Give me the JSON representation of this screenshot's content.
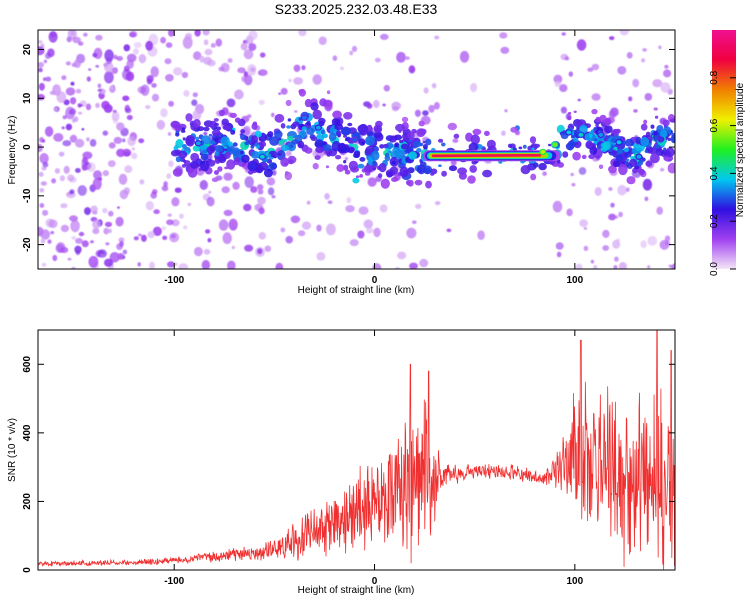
{
  "chart_data": [
    {
      "type": "heatmap",
      "title": "S233.2025.232.03.48.E33",
      "xlabel": "Height of straight line (km)",
      "ylabel": "Frequency (Hz)",
      "xlim": [
        -168,
        150
      ],
      "ylim": [
        -25,
        24
      ],
      "xticks": [
        {
          "value": -100,
          "label": "-100"
        },
        {
          "value": 0,
          "label": "0"
        },
        {
          "value": 100,
          "label": "100"
        }
      ],
      "yticks": [
        {
          "value": -20,
          "label": "-20"
        },
        {
          "value": -10,
          "label": "-10"
        },
        {
          "value": 0,
          "label": "0"
        },
        {
          "value": 10,
          "label": "10"
        },
        {
          "value": 20,
          "label": "20"
        }
      ],
      "ridge": [
        {
          "x": -95,
          "f": 0.0
        },
        {
          "x": -85,
          "f": 0.5
        },
        {
          "x": -75,
          "f": 1.0
        },
        {
          "x": -65,
          "f": 0.5
        },
        {
          "x": -55,
          "f": -2.0
        },
        {
          "x": -45,
          "f": 1.0
        },
        {
          "x": -35,
          "f": 5.0
        },
        {
          "x": -25,
          "f": 3.0
        },
        {
          "x": -15,
          "f": 1.0
        },
        {
          "x": -5,
          "f": 0.0
        },
        {
          "x": 5,
          "f": -1.0
        },
        {
          "x": 15,
          "f": -1.5
        },
        {
          "x": 27,
          "f": -2.0
        },
        {
          "x": 45,
          "f": -2.0
        },
        {
          "x": 60,
          "f": -2.0
        },
        {
          "x": 75,
          "f": -1.5
        },
        {
          "x": 85,
          "f": -1.0
        },
        {
          "x": 92,
          "f": 0.0
        },
        {
          "x": 100,
          "f": 3.0
        },
        {
          "x": 110,
          "f": 2.0
        },
        {
          "x": 120,
          "f": 0.0
        },
        {
          "x": 130,
          "f": -2.0
        },
        {
          "x": 140,
          "f": 2.0
        },
        {
          "x": 150,
          "f": 1.0
        }
      ],
      "peak_band": {
        "x_start": 27,
        "x_end": 90,
        "f": -1.8
      },
      "colorbar": {
        "label": "Normalized spectral amplitude",
        "range": [
          0,
          1
        ],
        "ticks": [
          {
            "value": 0.0,
            "label": "0.0"
          },
          {
            "value": 0.2,
            "label": "0.2"
          },
          {
            "value": 0.4,
            "label": "0.4"
          },
          {
            "value": 0.6,
            "label": "0.6"
          },
          {
            "value": 0.8,
            "label": "0.8"
          }
        ],
        "colors": [
          "#f4e6f8",
          "#a040f0",
          "#3010e0",
          "#00c8f0",
          "#20f020",
          "#f0f000",
          "#f08000",
          "#f00040",
          "#f01090"
        ]
      }
    },
    {
      "type": "line",
      "xlabel": "Height of straight line (km)",
      "ylabel": "SNR (10 * v/v)",
      "xlim": [
        -168,
        150
      ],
      "ylim": [
        0,
        700
      ],
      "color": "#f03030",
      "xticks": [
        {
          "value": -100,
          "label": "-100"
        },
        {
          "value": 0,
          "label": "0"
        },
        {
          "value": 100,
          "label": "100"
        }
      ],
      "yticks": [
        {
          "value": 0,
          "label": "0"
        },
        {
          "value": 200,
          "label": "200"
        },
        {
          "value": 400,
          "label": "400"
        },
        {
          "value": 600,
          "label": "600"
        }
      ],
      "envelope": [
        {
          "x": -168,
          "base": 18,
          "amp": 8
        },
        {
          "x": -120,
          "base": 22,
          "amp": 10
        },
        {
          "x": -100,
          "base": 28,
          "amp": 12
        },
        {
          "x": -80,
          "base": 40,
          "amp": 18
        },
        {
          "x": -60,
          "base": 50,
          "amp": 25
        },
        {
          "x": -45,
          "base": 70,
          "amp": 50
        },
        {
          "x": -30,
          "base": 110,
          "amp": 90
        },
        {
          "x": -15,
          "base": 150,
          "amp": 120
        },
        {
          "x": 0,
          "base": 210,
          "amp": 170
        },
        {
          "x": 15,
          "base": 240,
          "amp": 250
        },
        {
          "x": 27,
          "base": 260,
          "amp": 280
        },
        {
          "x": 34,
          "base": 270,
          "amp": 40
        },
        {
          "x": 50,
          "base": 290,
          "amp": 25
        },
        {
          "x": 70,
          "base": 285,
          "amp": 25
        },
        {
          "x": 85,
          "base": 265,
          "amp": 25
        },
        {
          "x": 92,
          "base": 300,
          "amp": 80
        },
        {
          "x": 100,
          "base": 350,
          "amp": 240
        },
        {
          "x": 115,
          "base": 300,
          "amp": 280
        },
        {
          "x": 130,
          "base": 280,
          "amp": 300
        },
        {
          "x": 150,
          "base": 260,
          "amp": 320
        }
      ],
      "peaks": [
        {
          "x": 18,
          "y": 600
        },
        {
          "x": 27,
          "y": 580
        },
        {
          "x": 103,
          "y": 670
        },
        {
          "x": 141,
          "y": 700
        },
        {
          "x": 148,
          "y": 640
        }
      ]
    }
  ]
}
